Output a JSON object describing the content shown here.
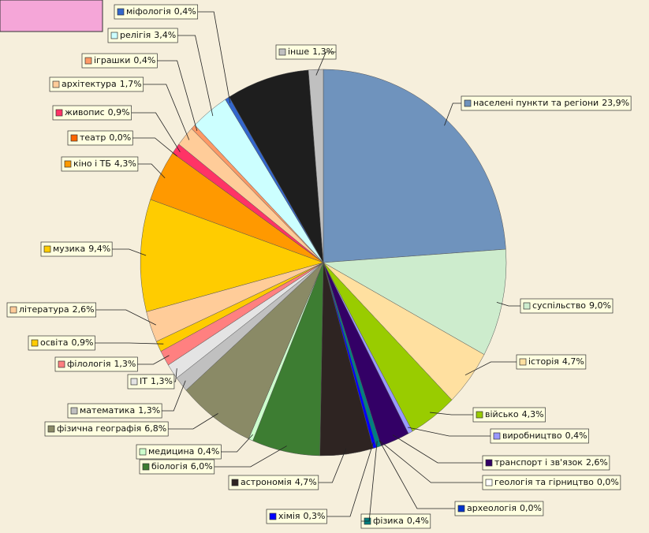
{
  "chart_data": {
    "type": "pie",
    "categories": [
      "населені пункти та регіони",
      "суспільство",
      "історія",
      "військо",
      "виробництво",
      "транспорт і зв'язок",
      "геологія та гірництво",
      "археологія",
      "фізика",
      "хімія",
      "астрономія",
      "біологія",
      "медицина",
      "фізична географія",
      "математика",
      "ІТ",
      "філологія",
      "освіта",
      "література",
      "музика",
      "кіно і ТБ",
      "театр",
      "живопис",
      "архітектура",
      "іграшки",
      "релігія",
      "міфологія",
      null,
      "інше"
    ],
    "values": [
      23.9,
      9.0,
      4.7,
      4.3,
      0.4,
      2.6,
      0.0,
      0.0,
      0.4,
      0.3,
      4.7,
      6.0,
      0.4,
      6.8,
      1.3,
      1.3,
      1.3,
      0.9,
      2.6,
      9.4,
      4.3,
      0.0,
      0.9,
      1.7,
      0.4,
      3.4,
      0.4,
      7.3,
      1.3
    ],
    "value_labels": [
      "23,9%",
      "9,0%",
      "4,7%",
      "4,3%",
      "0,4%",
      "2,6%",
      "0,0%",
      "0,0%",
      "0,4%",
      "0,3%",
      "4,7%",
      "6,0%",
      "0,4%",
      "6,8%",
      "1,3%",
      "1,3%",
      "1,3%",
      "0,9%",
      "2,6%",
      "9,4%",
      "4,3%",
      "0,0%",
      "0,9%",
      "1,7%",
      "0,4%",
      "3,4%",
      "0,4%",
      null,
      "1,3%"
    ],
    "colors": [
      "#6f93bd",
      "#cdeccd",
      "#ffe0a0",
      "#99cc00",
      "#9999ff",
      "#330066",
      "#ffffff",
      "#0033cc",
      "#008080",
      "#0000ff",
      "#2e2422",
      "#3d7d32",
      "#ccffcc",
      "#8a8a66",
      "#c0c0c0",
      "#e4e4e4",
      "#ff8080",
      "#ffcc00",
      "#ffcc99",
      "#ffcc00",
      "#ff9900",
      "#ff6600",
      "#ff3366",
      "#ffcc99",
      "#ff9966",
      "#ccffff",
      "#3366cc",
      "#1e1e1e",
      "#c0c0c0"
    ]
  }
}
